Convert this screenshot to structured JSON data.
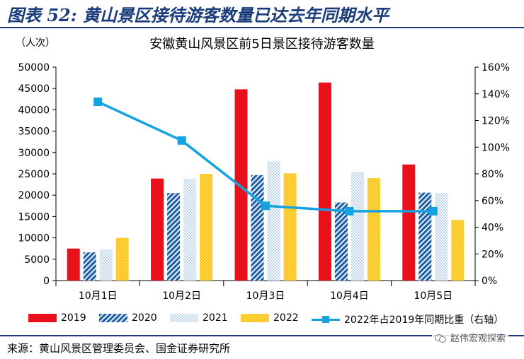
{
  "header": {
    "figure_title": "图表 52: 黄山景区接待游客数量已达去年同期水平"
  },
  "chart_data": {
    "type": "bar",
    "title": "安徽黄山风景区前5日景区接待游客数量",
    "unit_label": "（人次）",
    "categories": [
      "10月1日",
      "10月2日",
      "10月3日",
      "10月4日",
      "10月5日"
    ],
    "series": [
      {
        "name": "2019",
        "kind": "bar",
        "axis": "left",
        "values": [
          7500,
          23900,
          44800,
          46400,
          27200
        ]
      },
      {
        "name": "2020",
        "kind": "bar",
        "axis": "left",
        "values": [
          6600,
          20500,
          24700,
          18300,
          20600
        ]
      },
      {
        "name": "2021",
        "kind": "bar",
        "axis": "left",
        "values": [
          7300,
          23800,
          27900,
          25500,
          20500
        ]
      },
      {
        "name": "2022",
        "kind": "bar",
        "axis": "left",
        "values": [
          10000,
          25000,
          25100,
          24000,
          14200
        ]
      },
      {
        "name": "2022年占2019年同期比重（右轴）",
        "kind": "line",
        "axis": "right",
        "values": [
          1.34,
          1.05,
          0.56,
          0.52,
          0.52
        ]
      }
    ],
    "y_left": {
      "min": 0,
      "max": 50000,
      "step": 5000,
      "ticks": [
        "0",
        "5000",
        "10000",
        "15000",
        "20000",
        "25000",
        "30000",
        "35000",
        "40000",
        "45000",
        "50000"
      ]
    },
    "y_right": {
      "min": 0,
      "max": 1.6,
      "step": 0.2,
      "ticks": [
        "0%",
        "20%",
        "40%",
        "60%",
        "80%",
        "100%",
        "120%",
        "140%",
        "160%"
      ]
    },
    "grid": false,
    "legend_position": "bottom",
    "colors": {
      "2019": "#e8111b",
      "2020": "#1f5fa8",
      "2021": "#9ec1e6",
      "2022": "#ffc000",
      "line": "#14a3e0"
    }
  },
  "footer": {
    "source": "来源：黄山风景区管理委员会、国金证券研究所",
    "watermark": "赵伟宏观探索"
  }
}
